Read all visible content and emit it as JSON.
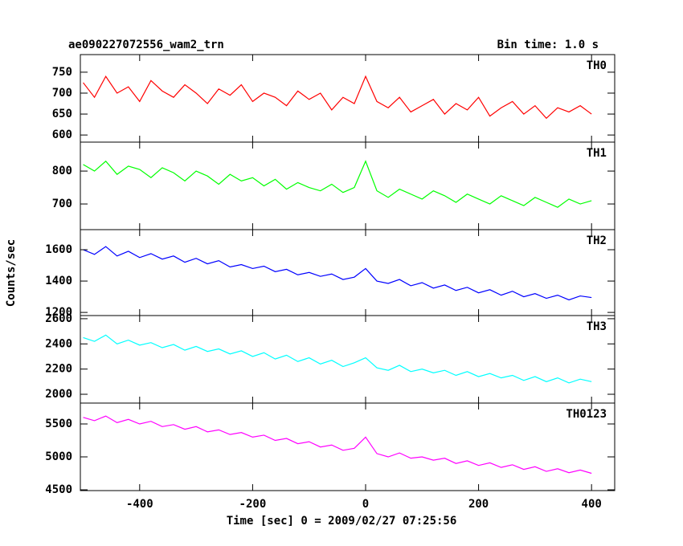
{
  "chart_data": [
    {
      "type": "line",
      "title": "ae090227072556_wam2_trn",
      "subtitle": "Bin time: 1.0 s",
      "label": "TH0",
      "color": "#ff0000",
      "x": [
        -500,
        -480,
        -460,
        -440,
        -420,
        -400,
        -380,
        -360,
        -340,
        -320,
        -300,
        -280,
        -260,
        -240,
        -220,
        -200,
        -180,
        -160,
        -140,
        -120,
        -100,
        -80,
        -60,
        -40,
        -20,
        0,
        20,
        40,
        60,
        80,
        100,
        120,
        140,
        160,
        180,
        200,
        220,
        240,
        260,
        280,
        300,
        320,
        340,
        360,
        380,
        400
      ],
      "values": [
        725,
        690,
        740,
        700,
        715,
        680,
        730,
        705,
        690,
        720,
        700,
        675,
        710,
        695,
        720,
        680,
        700,
        690,
        670,
        705,
        685,
        700,
        660,
        690,
        675,
        740,
        680,
        665,
        690,
        655,
        670,
        685,
        650,
        675,
        660,
        690,
        645,
        665,
        680,
        650,
        670,
        640,
        665,
        655,
        670,
        650
      ],
      "xlim": [
        -505,
        441
      ],
      "xticks": [
        -400,
        -200,
        0,
        200,
        400
      ],
      "ylim": [
        583,
        792
      ],
      "yticks": [
        600,
        650,
        700,
        750
      ]
    },
    {
      "type": "line",
      "label": "TH1",
      "color": "#00ff00",
      "x": [
        -500,
        -480,
        -460,
        -440,
        -420,
        -400,
        -380,
        -360,
        -340,
        -320,
        -300,
        -280,
        -260,
        -240,
        -220,
        -200,
        -180,
        -160,
        -140,
        -120,
        -100,
        -80,
        -60,
        -40,
        -20,
        0,
        20,
        40,
        60,
        80,
        100,
        120,
        140,
        160,
        180,
        200,
        220,
        240,
        260,
        280,
        300,
        320,
        340,
        360,
        380,
        400
      ],
      "values": [
        820,
        800,
        830,
        790,
        815,
        805,
        780,
        810,
        795,
        770,
        800,
        785,
        760,
        790,
        770,
        780,
        755,
        775,
        745,
        765,
        750,
        740,
        760,
        735,
        750,
        830,
        740,
        720,
        745,
        730,
        715,
        740,
        725,
        705,
        730,
        715,
        700,
        725,
        710,
        695,
        720,
        705,
        690,
        715,
        700,
        710
      ],
      "xlim": [
        -505,
        441
      ],
      "xticks": [
        -400,
        -200,
        0,
        200,
        400
      ],
      "ylim": [
        622,
        888
      ],
      "yticks": [
        700,
        800
      ]
    },
    {
      "type": "line",
      "label": "TH2",
      "ylabel": "Counts/sec",
      "color": "#0000ff",
      "x": [
        -500,
        -480,
        -460,
        -440,
        -420,
        -400,
        -380,
        -360,
        -340,
        -320,
        -300,
        -280,
        -260,
        -240,
        -220,
        -200,
        -180,
        -160,
        -140,
        -120,
        -100,
        -80,
        -60,
        -40,
        -20,
        0,
        20,
        40,
        60,
        80,
        100,
        120,
        140,
        160,
        180,
        200,
        220,
        240,
        260,
        280,
        300,
        320,
        340,
        360,
        380,
        400
      ],
      "values": [
        1600,
        1570,
        1620,
        1560,
        1590,
        1550,
        1575,
        1540,
        1560,
        1520,
        1545,
        1510,
        1530,
        1490,
        1505,
        1480,
        1495,
        1460,
        1475,
        1440,
        1455,
        1430,
        1445,
        1410,
        1425,
        1480,
        1400,
        1385,
        1410,
        1370,
        1390,
        1355,
        1375,
        1340,
        1360,
        1325,
        1345,
        1310,
        1335,
        1300,
        1320,
        1290,
        1310,
        1280,
        1305,
        1295
      ],
      "xlim": [
        -505,
        441
      ],
      "xticks": [
        -400,
        -200,
        0,
        200,
        400
      ],
      "ylim": [
        1180,
        1728
      ],
      "yticks": [
        1200,
        1400,
        1600
      ]
    },
    {
      "type": "line",
      "label": "TH3",
      "color": "#00ffff",
      "x": [
        -500,
        -480,
        -460,
        -440,
        -420,
        -400,
        -380,
        -360,
        -340,
        -320,
        -300,
        -280,
        -260,
        -240,
        -220,
        -200,
        -180,
        -160,
        -140,
        -120,
        -100,
        -80,
        -60,
        -40,
        -20,
        0,
        20,
        40,
        60,
        80,
        100,
        120,
        140,
        160,
        180,
        200,
        220,
        240,
        260,
        280,
        300,
        320,
        340,
        360,
        380,
        400
      ],
      "values": [
        2450,
        2420,
        2470,
        2400,
        2430,
        2390,
        2410,
        2370,
        2395,
        2350,
        2380,
        2340,
        2360,
        2320,
        2345,
        2300,
        2330,
        2280,
        2310,
        2260,
        2290,
        2240,
        2270,
        2220,
        2250,
        2290,
        2210,
        2190,
        2230,
        2180,
        2200,
        2170,
        2190,
        2150,
        2180,
        2140,
        2165,
        2130,
        2150,
        2110,
        2140,
        2100,
        2130,
        2090,
        2120,
        2100
      ],
      "xlim": [
        -505,
        441
      ],
      "xticks": [
        -400,
        -200,
        0,
        200,
        400
      ],
      "ylim": [
        1930,
        2625
      ],
      "yticks": [
        2000,
        2200,
        2400,
        2600
      ]
    },
    {
      "type": "line",
      "label": "TH0123",
      "xlabel": "Time [sec] 0 = 2009/02/27 07:25:56",
      "color": "#ff00ff",
      "x": [
        -500,
        -480,
        -460,
        -440,
        -420,
        -400,
        -380,
        -360,
        -340,
        -320,
        -300,
        -280,
        -260,
        -240,
        -220,
        -200,
        -180,
        -160,
        -140,
        -120,
        -100,
        -80,
        -60,
        -40,
        -20,
        0,
        20,
        40,
        60,
        80,
        100,
        120,
        140,
        160,
        180,
        200,
        220,
        240,
        260,
        280,
        300,
        320,
        340,
        360,
        380,
        400
      ],
      "values": [
        5600,
        5550,
        5620,
        5520,
        5570,
        5500,
        5540,
        5460,
        5490,
        5420,
        5460,
        5380,
        5410,
        5340,
        5370,
        5300,
        5330,
        5250,
        5280,
        5200,
        5230,
        5150,
        5180,
        5100,
        5130,
        5300,
        5050,
        5000,
        5060,
        4980,
        5000,
        4950,
        4980,
        4900,
        4940,
        4870,
        4910,
        4840,
        4880,
        4810,
        4850,
        4780,
        4820,
        4760,
        4800,
        4750
      ],
      "xlim": [
        -505,
        441
      ],
      "xticks": [
        -400,
        -200,
        0,
        200,
        400
      ],
      "ylim": [
        4488,
        5817
      ],
      "yticks": [
        4500,
        5000,
        5500
      ]
    }
  ]
}
